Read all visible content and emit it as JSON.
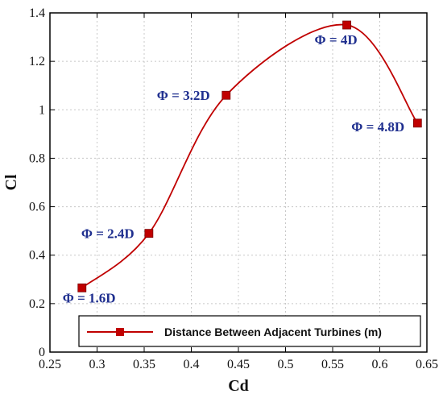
{
  "chart_data": {
    "type": "line",
    "xlabel": "Cd",
    "ylabel": "Cl",
    "xlim": [
      0.25,
      0.65
    ],
    "ylim": [
      0,
      1.4
    ],
    "x_ticks": [
      "0.25",
      "0.3",
      "0.35",
      "0.4",
      "0.45",
      "0.5",
      "0.55",
      "0.6",
      "0.65"
    ],
    "y_ticks": [
      "0",
      "0.2",
      "0.4",
      "0.6",
      "0.8",
      "1",
      "1.2",
      "1.4"
    ],
    "grid": true,
    "legend_position": "bottom-right",
    "series": [
      {
        "name": "Distance Between Adjacent Turbines (m)",
        "color": "#c00000",
        "points": [
          {
            "x": 0.284,
            "y": 0.265,
            "label": "Φ = 1.6D"
          },
          {
            "x": 0.355,
            "y": 0.49,
            "label": "Φ = 2.4D"
          },
          {
            "x": 0.437,
            "y": 1.06,
            "label": "Φ = 3.2D"
          },
          {
            "x": 0.565,
            "y": 1.35,
            "label": "Φ = 4D"
          },
          {
            "x": 0.64,
            "y": 0.945,
            "label": "Φ = 4.8D"
          }
        ]
      }
    ]
  }
}
